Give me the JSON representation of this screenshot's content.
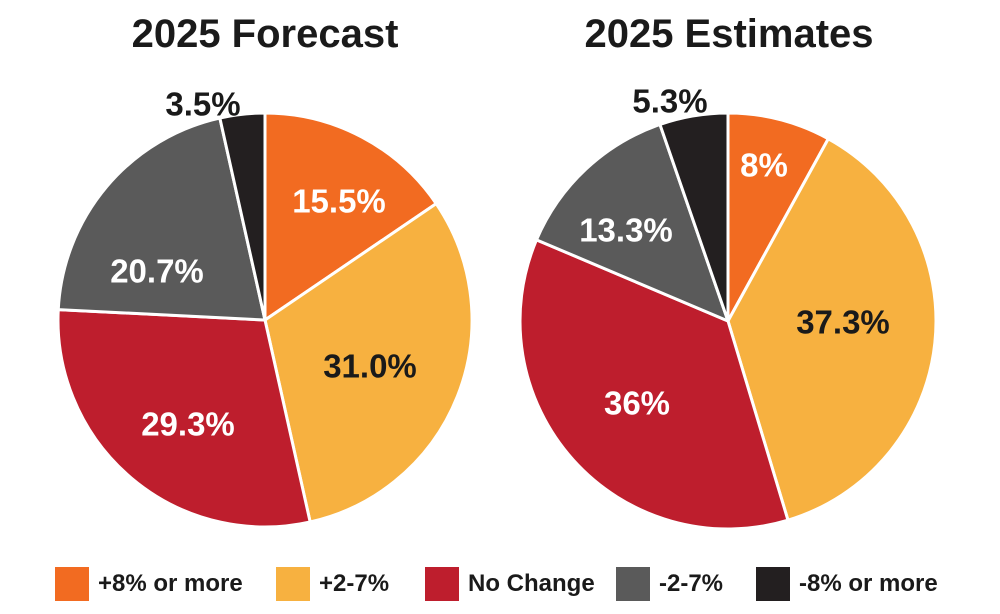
{
  "colors": {
    "plus8": "#f26b21",
    "plus2_7": "#f7b140",
    "no_change": "#be1e2d",
    "minus2_7": "#5a5a5a",
    "minus8": "#231f20"
  },
  "chart_data": [
    {
      "type": "pie",
      "title": "2025 Forecast",
      "slices": [
        {
          "category": "+8% or more",
          "value": 15.5,
          "label": "15.5%",
          "color": "#f26b21",
          "label_color": "#ffffff"
        },
        {
          "category": "+2-7%",
          "value": 31.0,
          "label": "31.0%",
          "color": "#f7b140",
          "label_color": "#1a1a1a"
        },
        {
          "category": "No Change",
          "value": 29.3,
          "label": "29.3%",
          "color": "#be1e2d",
          "label_color": "#ffffff"
        },
        {
          "category": "-2-7%",
          "value": 20.7,
          "label": "20.7%",
          "color": "#5a5a5a",
          "label_color": "#ffffff"
        },
        {
          "category": "-8% or more",
          "value": 3.5,
          "label": "3.5%",
          "color": "#231f20",
          "label_color": "#1a1a1a"
        }
      ]
    },
    {
      "type": "pie",
      "title": "2025 Estimates",
      "slices": [
        {
          "category": "+8% or more",
          "value": 8,
          "label": "8%",
          "color": "#f26b21",
          "label_color": "#ffffff"
        },
        {
          "category": "+2-7%",
          "value": 37.3,
          "label": "37.3%",
          "color": "#f7b140",
          "label_color": "#1a1a1a"
        },
        {
          "category": "No Change",
          "value": 36,
          "label": "36%",
          "color": "#be1e2d",
          "label_color": "#ffffff"
        },
        {
          "category": "-2-7%",
          "value": 13.3,
          "label": "13.3%",
          "color": "#5a5a5a",
          "label_color": "#ffffff"
        },
        {
          "category": "-8% or more",
          "value": 5.3,
          "label": "5.3%",
          "color": "#231f20",
          "label_color": "#1a1a1a"
        }
      ]
    }
  ],
  "legend": {
    "items": [
      {
        "label": "+8% or more",
        "color": "#f26b21"
      },
      {
        "label": "+2-7%",
        "color": "#f7b140"
      },
      {
        "label": "No Change",
        "color": "#be1e2d"
      },
      {
        "label": "-2-7%",
        "color": "#5a5a5a"
      },
      {
        "label": "-8% or more",
        "color": "#231f20"
      }
    ]
  }
}
